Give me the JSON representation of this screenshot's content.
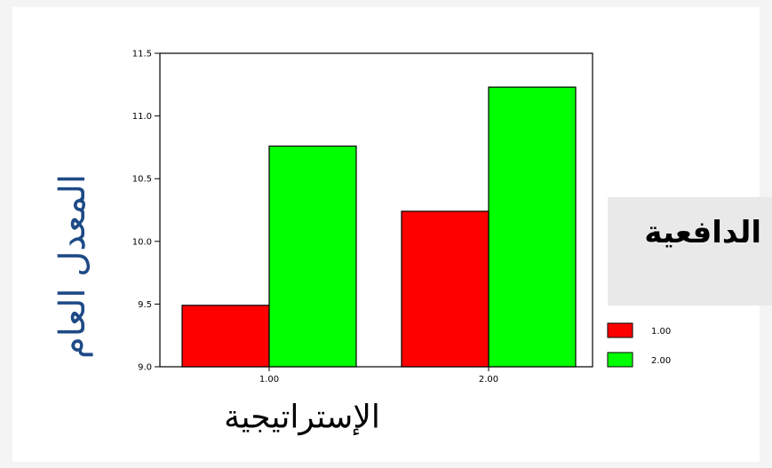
{
  "chart_data": {
    "type": "bar",
    "categories": [
      "1.00",
      "2.00"
    ],
    "series": [
      {
        "name": "1.00",
        "color": "#ff0000",
        "values": [
          9.49,
          10.24
        ]
      },
      {
        "name": "2.00",
        "color": "#00ff00",
        "values": [
          10.76,
          11.23
        ]
      }
    ],
    "ylim": [
      9.0,
      11.5
    ],
    "yticks": [
      "9.0",
      "9.5",
      "10.0",
      "10.5",
      "11.0",
      "11.5"
    ],
    "ytick_values": [
      9.0,
      9.5,
      10.0,
      10.5,
      11.0,
      11.5
    ],
    "xlabel": "الإستراتيجية",
    "ylabel": "المعدل العام",
    "legend_title": "الدافعية",
    "legend_position": "right",
    "grid": false
  }
}
